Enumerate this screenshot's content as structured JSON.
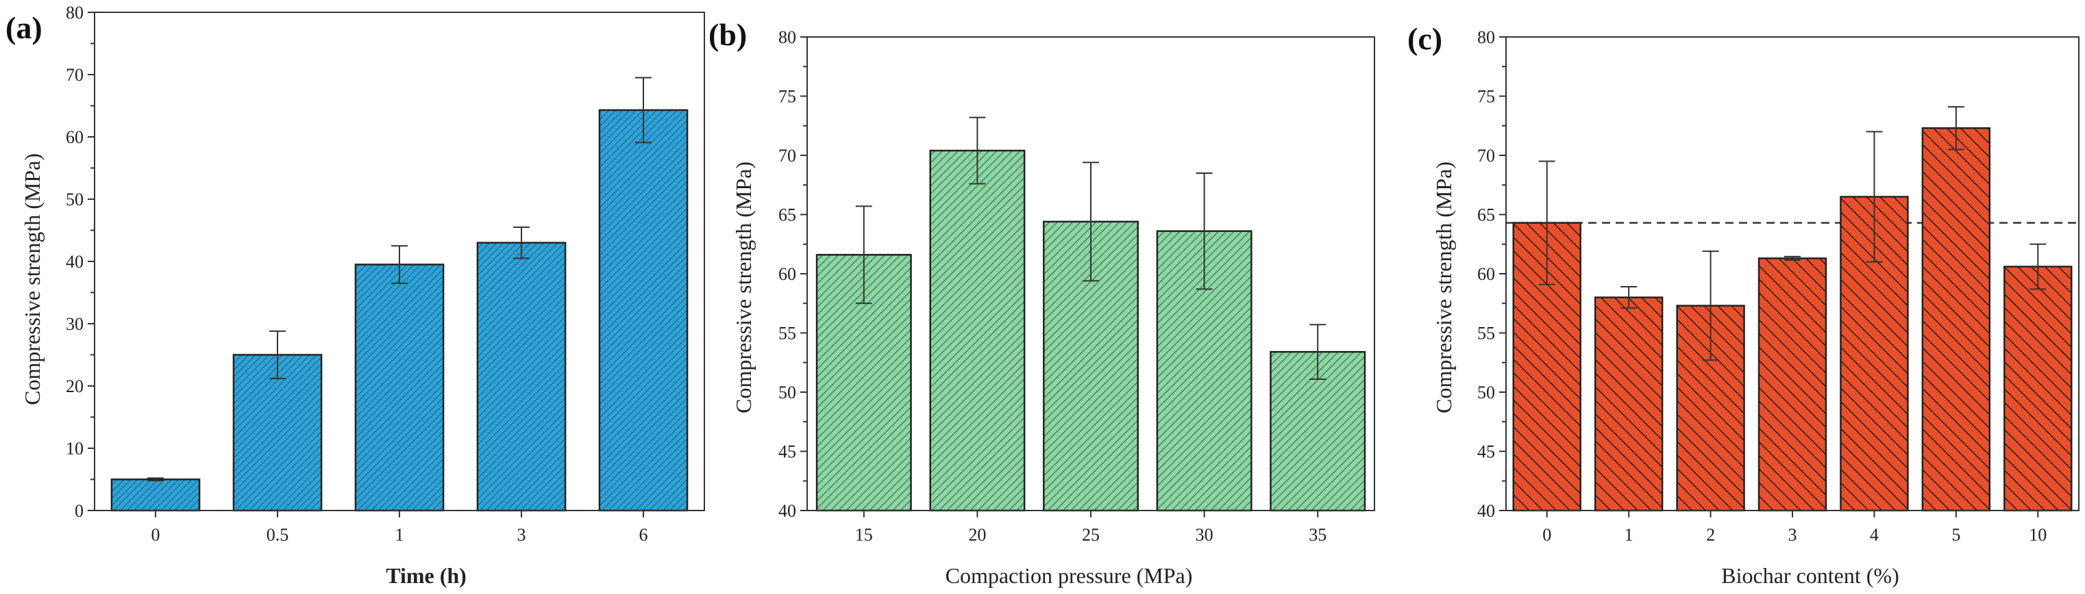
{
  "chart_data": [
    {
      "type": "bar",
      "panel_label": "(a)",
      "xlabel": "Time (h)",
      "ylabel": "Compressive strength (MPa)",
      "categories": [
        "0",
        "0.5",
        "1",
        "3",
        "6"
      ],
      "values": [
        5,
        25,
        39.5,
        43,
        64.3
      ],
      "errors": [
        0.2,
        3.8,
        3.0,
        2.5,
        5.2
      ],
      "ylim": [
        0,
        80
      ],
      "yticks": [
        "0",
        "10",
        "20",
        "30",
        "40",
        "50",
        "60",
        "70",
        "80"
      ],
      "color": "#2ea2d6",
      "hatch_dir": "diag-up",
      "reference_line": null
    },
    {
      "type": "bar",
      "panel_label": "(b)",
      "xlabel": "Compaction pressure (MPa)",
      "ylabel": "Compressive strength (MPa)",
      "categories": [
        "15",
        "20",
        "25",
        "30",
        "35"
      ],
      "values": [
        61.6,
        70.4,
        64.4,
        63.6,
        53.4
      ],
      "errors": [
        4.1,
        2.8,
        5.0,
        4.9,
        2.3
      ],
      "ylim": [
        40,
        80
      ],
      "yticks": [
        "40",
        "45",
        "50",
        "55",
        "60",
        "65",
        "70",
        "75",
        "80"
      ],
      "color": "#8fd4a4",
      "hatch_dir": "diag-up",
      "reference_line": null
    },
    {
      "type": "bar",
      "panel_label": "(c)",
      "xlabel": "Biochar content (%)",
      "ylabel": "Compressive strength (MPa)",
      "categories": [
        "0",
        "1",
        "2",
        "3",
        "4",
        "5",
        "10"
      ],
      "values": [
        64.3,
        58.0,
        57.3,
        61.3,
        66.5,
        72.3,
        60.6
      ],
      "errors": [
        5.2,
        0.9,
        4.6,
        0.15,
        5.5,
        1.8,
        1.9
      ],
      "ylim": [
        40,
        80
      ],
      "yticks": [
        "40",
        "45",
        "50",
        "55",
        "60",
        "65",
        "70",
        "75",
        "80"
      ],
      "color": "#e8502c",
      "hatch_dir": "diag-down",
      "reference_line": 64.3
    }
  ]
}
